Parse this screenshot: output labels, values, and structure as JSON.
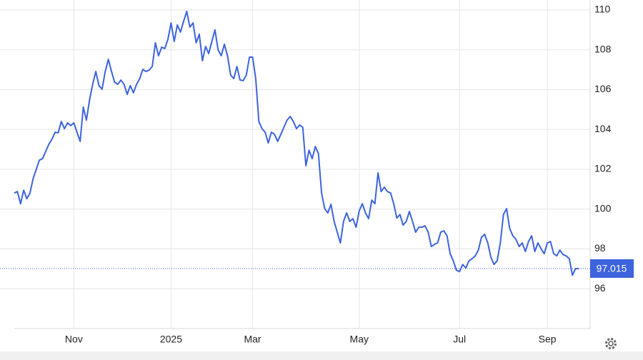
{
  "chart_data": {
    "type": "line",
    "categories": [
      null,
      null,
      null,
      null,
      null,
      null,
      null,
      null,
      null,
      null,
      null,
      null,
      null,
      null,
      null,
      null,
      null,
      null,
      null,
      "Nov",
      null,
      null,
      null,
      null,
      null,
      null,
      null,
      null,
      null,
      null,
      null,
      null,
      null,
      null,
      null,
      null,
      null,
      null,
      null,
      null,
      null,
      null,
      null,
      null,
      null,
      null,
      null,
      null,
      null,
      null,
      "2025",
      null,
      null,
      null,
      null,
      null,
      null,
      null,
      null,
      null,
      null,
      null,
      null,
      null,
      null,
      null,
      null,
      null,
      null,
      null,
      null,
      null,
      null,
      null,
      null,
      null,
      "Mar",
      null,
      null,
      null,
      null,
      null,
      null,
      null,
      null,
      null,
      null,
      null,
      null,
      null,
      null,
      null,
      null,
      null,
      null,
      null,
      null,
      null,
      null,
      null,
      null,
      null,
      null,
      null,
      null,
      null,
      null,
      null,
      null,
      null,
      "May",
      null,
      null,
      null,
      null,
      null,
      null,
      null,
      null,
      null,
      null,
      null,
      null,
      null,
      null,
      null,
      null,
      null,
      null,
      null,
      null,
      null,
      null,
      null,
      null,
      null,
      null,
      null,
      null,
      null,
      null,
      null,
      "Jul",
      null,
      null,
      null,
      null,
      null,
      null,
      null,
      null,
      null,
      null,
      null,
      null,
      null,
      null,
      null,
      null,
      null,
      null,
      null,
      null,
      null,
      null,
      null,
      null,
      null,
      null,
      null,
      "Sep",
      null,
      null,
      null,
      null,
      null,
      null,
      null,
      null,
      null,
      null
    ],
    "series": [
      {
        "color": "#3d63dd",
        "values": [
          100.81,
          100.88,
          100.27,
          100.95,
          100.52,
          100.81,
          101.53,
          101.99,
          102.46,
          102.53,
          102.89,
          103.25,
          103.5,
          103.86,
          103.83,
          104.4,
          104.04,
          104.33,
          104.19,
          104.33,
          103.86,
          103.4,
          105.12,
          104.47,
          105.48,
          106.27,
          106.91,
          106.2,
          106.02,
          106.91,
          107.52,
          106.91,
          106.37,
          106.27,
          106.48,
          106.27,
          105.76,
          106.2,
          105.84,
          106.27,
          106.55,
          107.02,
          106.91,
          106.98,
          107.16,
          108.35,
          107.7,
          108.13,
          108.06,
          108.53,
          109.35,
          108.42,
          109.25,
          108.89,
          109.43,
          109.93,
          109.14,
          109.35,
          108.35,
          108.78,
          107.45,
          108.17,
          107.81,
          108.42,
          109.0,
          107.99,
          107.7,
          108.28,
          107.7,
          106.73,
          106.55,
          107.16,
          106.48,
          106.45,
          106.73,
          107.63,
          107.63,
          106.55,
          104.4,
          104.04,
          103.86,
          103.32,
          103.86,
          103.75,
          103.4,
          103.75,
          104.11,
          104.47,
          104.65,
          104.4,
          104.04,
          104.22,
          104.11,
          102.18,
          102.96,
          102.53,
          103.14,
          102.79,
          100.81,
          100.02,
          99.81,
          100.24,
          99.38,
          98.84,
          98.3,
          99.38,
          99.81,
          99.38,
          99.52,
          99.09,
          99.91,
          100.27,
          99.81,
          99.52,
          100.45,
          100.27,
          101.82,
          100.88,
          101.1,
          100.88,
          100.81,
          100.27,
          99.55,
          99.73,
          99.2,
          99.38,
          99.88,
          99.38,
          98.84,
          99.09,
          99.09,
          99.16,
          98.84,
          98.12,
          98.23,
          98.3,
          98.84,
          98.91,
          98.66,
          97.76,
          97.4,
          96.93,
          96.86,
          97.22,
          97.04,
          97.4,
          97.51,
          97.65,
          97.94,
          98.59,
          98.73,
          98.3,
          97.58,
          97.22,
          97.4,
          98.3,
          99.73,
          100.02,
          99.02,
          98.66,
          98.48,
          98.12,
          98.3,
          97.87,
          98.37,
          98.66,
          97.87,
          98.3,
          98.01,
          97.76,
          98.3,
          98.37,
          97.76,
          97.65,
          97.94,
          97.72,
          97.65,
          97.51,
          96.68,
          97.01,
          97.015
        ]
      }
    ],
    "ylim": [
      94,
      110.5
    ],
    "yticks": [
      96,
      98,
      100,
      102,
      104,
      106,
      108,
      110
    ],
    "grid": true
  }
}
